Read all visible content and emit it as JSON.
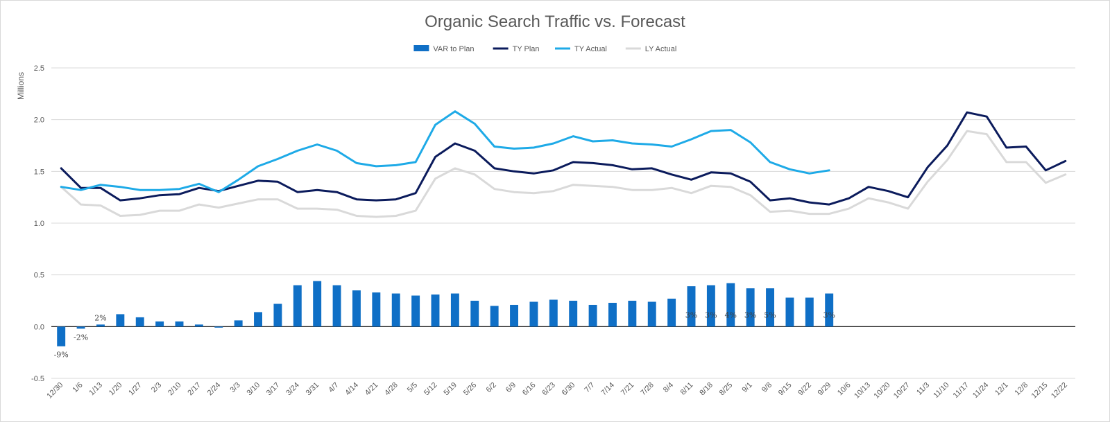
{
  "chart_data": {
    "type": "bar+line",
    "title": "Organic Search Traffic vs. Forecast",
    "ylabel": "Millions",
    "ylim": [
      -0.5,
      2.5
    ],
    "yticks": [
      "-0.5",
      "0.0",
      "0.5",
      "1.0",
      "1.5",
      "2.0",
      "2.5"
    ],
    "grid": true,
    "legend_position": "top",
    "categories": [
      "12/30",
      "1/6",
      "1/13",
      "1/20",
      "1/27",
      "2/3",
      "2/10",
      "2/17",
      "2/24",
      "3/3",
      "3/10",
      "3/17",
      "3/24",
      "3/31",
      "4/7",
      "4/14",
      "4/21",
      "4/28",
      "5/5",
      "5/12",
      "5/19",
      "5/26",
      "6/2",
      "6/9",
      "6/16",
      "6/23",
      "6/30",
      "7/7",
      "7/14",
      "7/21",
      "7/28",
      "8/4",
      "8/11",
      "8/18",
      "8/25",
      "9/1",
      "9/8",
      "9/15",
      "9/22",
      "9/29",
      "10/6",
      "10/13",
      "10/20",
      "10/27",
      "11/3",
      "11/10",
      "11/17",
      "11/24",
      "12/1",
      "12/8",
      "12/15",
      "12/22"
    ],
    "series": [
      {
        "name": "VAR to Plan",
        "type": "bar",
        "color": "#0F6FC6",
        "values": [
          -0.19,
          -0.02,
          0.02,
          0.12,
          0.09,
          0.05,
          0.05,
          0.02,
          -0.01,
          0.06,
          0.14,
          0.22,
          0.4,
          0.44,
          0.4,
          0.35,
          0.33,
          0.32,
          0.3,
          0.31,
          0.32,
          0.25,
          0.2,
          0.21,
          0.24,
          0.26,
          0.25,
          0.21,
          0.23,
          0.25,
          0.24,
          0.27,
          0.39,
          0.4,
          0.42,
          0.37,
          0.37,
          0.28,
          0.28,
          0.32,
          null,
          null,
          null,
          null,
          null,
          null,
          null,
          null,
          null,
          null,
          null,
          null
        ]
      },
      {
        "name": "TY Plan",
        "type": "line",
        "color": "#0B1B5C",
        "values": [
          1.53,
          1.34,
          1.34,
          1.22,
          1.24,
          1.27,
          1.28,
          1.34,
          1.31,
          1.36,
          1.41,
          1.4,
          1.3,
          1.32,
          1.3,
          1.23,
          1.22,
          1.23,
          1.29,
          1.64,
          1.77,
          1.7,
          1.53,
          1.5,
          1.48,
          1.51,
          1.59,
          1.58,
          1.56,
          1.52,
          1.53,
          1.47,
          1.42,
          1.49,
          1.48,
          1.4,
          1.22,
          1.24,
          1.2,
          1.18,
          1.24,
          1.35,
          1.31,
          1.25,
          1.54,
          1.75,
          2.07,
          2.03,
          1.73,
          1.74,
          1.51,
          1.6
        ]
      },
      {
        "name": "TY Actual",
        "type": "line",
        "color": "#1EAAE7",
        "values": [
          1.35,
          1.32,
          1.37,
          1.35,
          1.32,
          1.32,
          1.33,
          1.38,
          1.3,
          1.42,
          1.55,
          1.62,
          1.7,
          1.76,
          1.7,
          1.58,
          1.55,
          1.56,
          1.59,
          1.95,
          2.08,
          1.96,
          1.74,
          1.72,
          1.73,
          1.77,
          1.84,
          1.79,
          1.8,
          1.77,
          1.76,
          1.74,
          1.81,
          1.89,
          1.9,
          1.78,
          1.59,
          1.52,
          1.48,
          1.51,
          null,
          null,
          null,
          null,
          null,
          null,
          null,
          null,
          null,
          null,
          null,
          null
        ]
      },
      {
        "name": "LY Actual",
        "type": "line",
        "color": "#D9D9D9",
        "values": [
          1.35,
          1.18,
          1.17,
          1.07,
          1.08,
          1.12,
          1.12,
          1.18,
          1.15,
          1.19,
          1.23,
          1.23,
          1.14,
          1.14,
          1.13,
          1.07,
          1.06,
          1.07,
          1.12,
          1.43,
          1.53,
          1.47,
          1.33,
          1.3,
          1.29,
          1.31,
          1.37,
          1.36,
          1.35,
          1.32,
          1.32,
          1.34,
          1.29,
          1.36,
          1.35,
          1.27,
          1.11,
          1.12,
          1.09,
          1.09,
          1.14,
          1.24,
          1.2,
          1.14,
          1.4,
          1.61,
          1.89,
          1.86,
          1.59,
          1.59,
          1.39,
          1.47
        ]
      }
    ],
    "data_labels": [
      {
        "category": "12/30",
        "text": "-9%"
      },
      {
        "category": "1/6",
        "text": "-2%"
      },
      {
        "category": "1/13",
        "text": "2%"
      },
      {
        "category": "8/11",
        "text": "3%"
      },
      {
        "category": "8/18",
        "text": "3%"
      },
      {
        "category": "8/25",
        "text": "4%"
      },
      {
        "category": "9/1",
        "text": "3%"
      },
      {
        "category": "9/8",
        "text": "5%"
      },
      {
        "category": "9/29",
        "text": "3%"
      }
    ]
  }
}
